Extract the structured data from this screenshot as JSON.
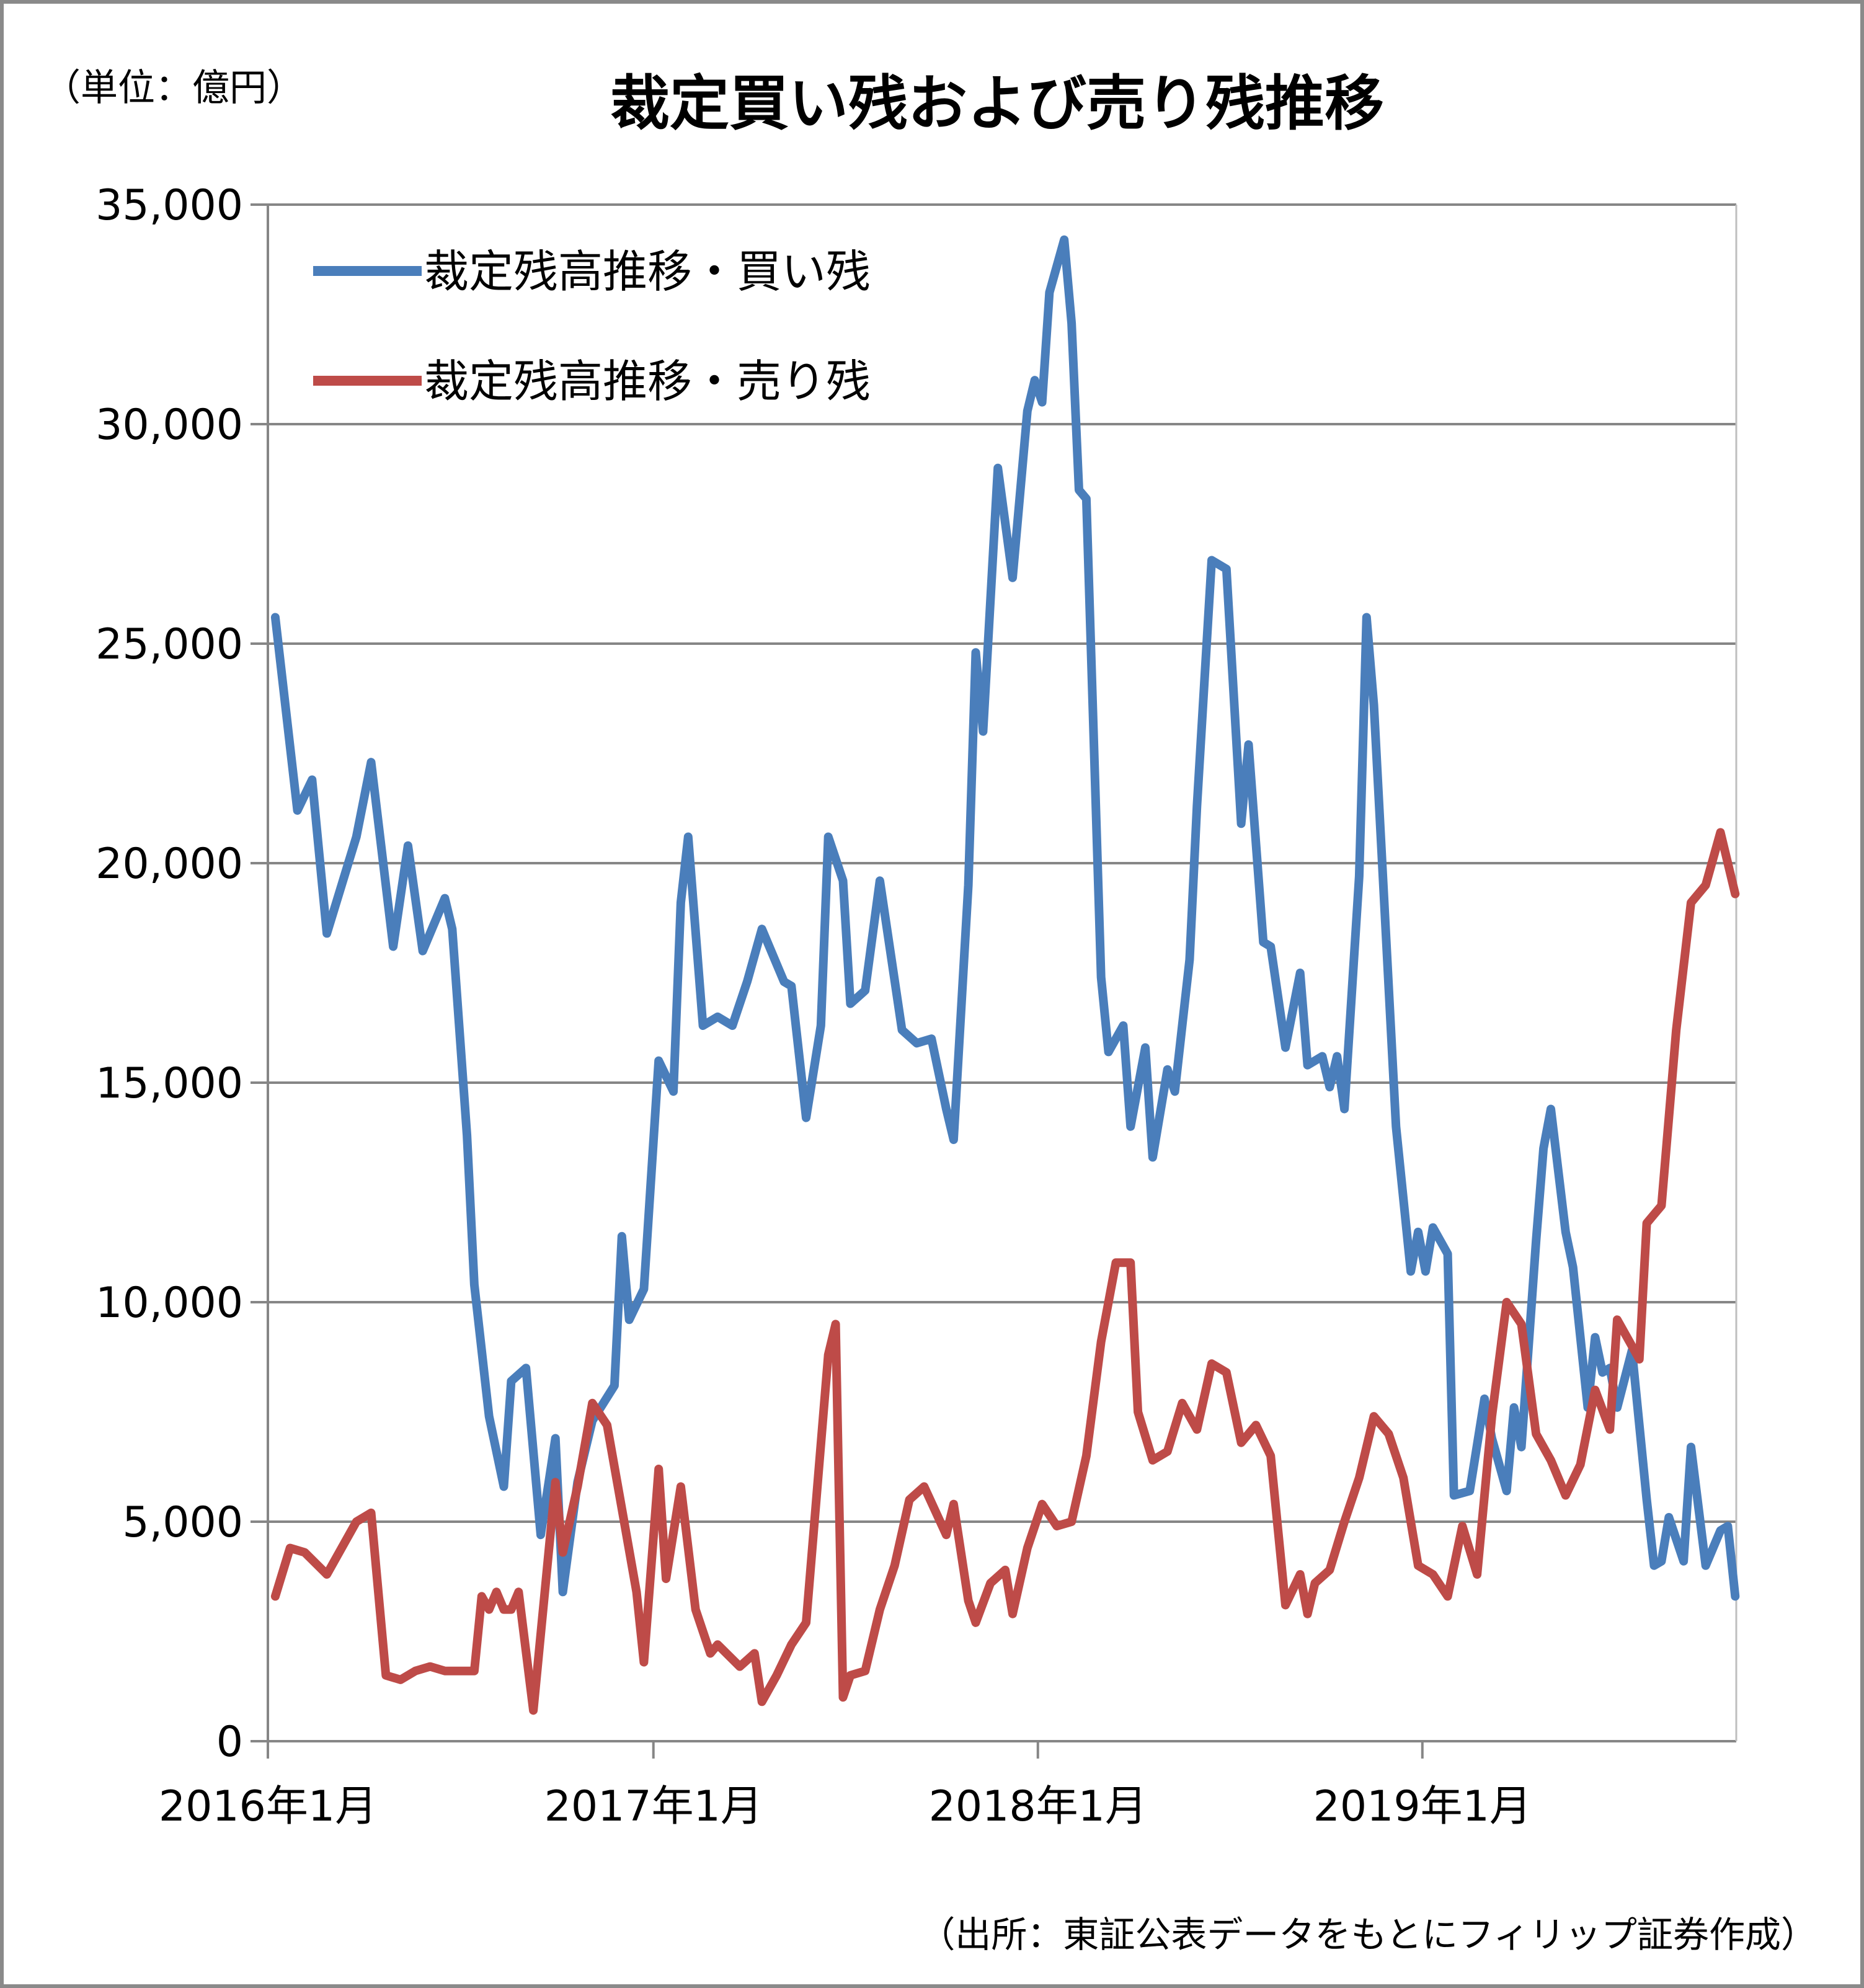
{
  "unit_label": "（単位：億円）",
  "source_note": "（出所：東証公表データをもとにフィリップ証券作成）",
  "chart_data": {
    "type": "line",
    "title": "裁定買い残および売り残推移",
    "xlabel": "",
    "ylabel": "",
    "x_start": "2016-01",
    "x_end": "2019-09",
    "xlim": [
      "2016-01",
      "2019-09"
    ],
    "ylim": [
      0,
      35000
    ],
    "y_ticks": [
      0,
      5000,
      10000,
      15000,
      20000,
      25000,
      30000,
      35000
    ],
    "y_tick_labels": [
      "0",
      "5,000",
      "10,000",
      "15,000",
      "20,000",
      "25,000",
      "30,000",
      "35,000"
    ],
    "x_ticks": [
      "2016-01",
      "2017-01",
      "2018-01",
      "2019-01"
    ],
    "x_tick_labels": [
      "2016年1月",
      "2017年1月",
      "2018年1月",
      "2019年1月"
    ],
    "grid": "horizontal",
    "legend_position": "top-left",
    "series": [
      {
        "name": "裁定残高推移・買い残",
        "color": "#4a7ebb",
        "values": [
          25600,
          21200,
          21900,
          18400,
          20600,
          22300,
          18100,
          20400,
          18000,
          19200,
          18500,
          13800,
          10400,
          7400,
          5800,
          8200,
          8500,
          4700,
          6900,
          3400,
          5900,
          7300,
          8100,
          11500,
          9600,
          10300,
          15500,
          14800,
          19100,
          20600,
          16300,
          16500,
          16300,
          17300,
          18500,
          17300,
          17200,
          14200,
          16300,
          20600,
          19600,
          16800,
          17100,
          19600,
          16200,
          15900,
          16000,
          14400,
          13700,
          19500,
          24800,
          23000,
          29000,
          26500,
          30300,
          31000,
          30500,
          33000,
          34200,
          32300,
          28500,
          28300,
          17400,
          15700,
          16300,
          14000,
          15800,
          13300,
          15300,
          14800,
          17800,
          21300,
          26900,
          26700,
          20900,
          22700,
          18200,
          18100,
          15800,
          17500,
          15400,
          15600,
          14900,
          15600,
          14400,
          19700,
          25600,
          23600,
          14000,
          10700,
          11600,
          10700,
          11700,
          11100,
          5600,
          5700,
          7800,
          6900,
          5700,
          7600,
          6700,
          11400,
          13500,
          14400,
          11600,
          10800,
          7600,
          9200,
          8400,
          8500,
          7600,
          8900,
          5500,
          4000,
          4100,
          5100,
          4100,
          6700,
          4000,
          4800,
          4900,
          3300
        ],
        "dates": [
          "2016-01-08",
          "2016-01-29",
          "2016-02-12",
          "2016-02-26",
          "2016-03-25",
          "2016-04-08",
          "2016-04-29",
          "2016-05-13",
          "2016-05-27",
          "2016-06-17",
          "2016-06-24",
          "2016-07-08",
          "2016-07-15",
          "2016-07-29",
          "2016-08-12",
          "2016-08-19",
          "2016-09-02",
          "2016-09-16",
          "2016-09-30",
          "2016-10-07",
          "2016-10-21",
          "2016-11-04",
          "2016-11-25",
          "2016-12-02",
          "2016-12-09",
          "2016-12-23",
          "2017-01-06",
          "2017-01-20",
          "2017-01-27",
          "2017-02-03",
          "2017-02-17",
          "2017-03-03",
          "2017-03-17",
          "2017-03-31",
          "2017-04-14",
          "2017-05-05",
          "2017-05-12",
          "2017-05-26",
          "2017-06-09",
          "2017-06-16",
          "2017-06-30",
          "2017-07-07",
          "2017-07-21",
          "2017-08-04",
          "2017-08-25",
          "2017-09-08",
          "2017-09-22",
          "2017-10-06",
          "2017-10-13",
          "2017-10-27",
          "2017-11-03",
          "2017-11-10",
          "2017-11-24",
          "2017-12-08",
          "2017-12-22",
          "2017-12-29",
          "2018-01-05",
          "2018-01-12",
          "2018-01-26",
          "2018-02-02",
          "2018-02-09",
          "2018-02-16",
          "2018-03-02",
          "2018-03-09",
          "2018-03-23",
          "2018-03-30",
          "2018-04-13",
          "2018-04-20",
          "2018-05-04",
          "2018-05-11",
          "2018-05-25",
          "2018-06-01",
          "2018-06-15",
          "2018-06-29",
          "2018-07-13",
          "2018-07-20",
          "2018-08-03",
          "2018-08-10",
          "2018-08-24",
          "2018-09-07",
          "2018-09-14",
          "2018-09-28",
          "2018-10-05",
          "2018-10-12",
          "2018-10-19",
          "2018-11-02",
          "2018-11-09",
          "2018-11-16",
          "2018-12-07",
          "2018-12-21",
          "2018-12-28",
          "2019-01-04",
          "2019-01-11",
          "2019-01-25",
          "2019-01-31",
          "2019-02-15",
          "2019-03-01",
          "2019-03-08",
          "2019-03-22",
          "2019-03-29",
          "2019-04-05",
          "2019-04-19",
          "2019-04-26",
          "2019-05-03",
          "2019-05-17",
          "2019-05-24",
          "2019-06-07",
          "2019-06-14",
          "2019-06-21",
          "2019-06-28",
          "2019-07-05",
          "2019-07-19",
          "2019-08-02",
          "2019-08-09",
          "2019-08-16",
          "2019-08-23",
          "2019-09-06",
          "2019-09-13",
          "2019-09-27",
          "2019-10-11",
          "2019-10-18",
          "2019-10-25"
        ]
      },
      {
        "name": "裁定残高推移・売り残",
        "color": "#be4b48",
        "values": [
          3300,
          4400,
          4300,
          3800,
          5000,
          5200,
          1500,
          1400,
          1600,
          1700,
          1600,
          1600,
          1600,
          1600,
          1600,
          3300,
          3000,
          3400,
          3000,
          3000,
          3400,
          700,
          5900,
          4300,
          5800,
          7700,
          7200,
          5300,
          3400,
          1800,
          6200,
          3700,
          5800,
          3000,
          2000,
          2200,
          1700,
          2000,
          900,
          1500,
          2200,
          2700,
          8800,
          9500,
          1000,
          1500,
          1600,
          3000,
          4000,
          5500,
          5800,
          4700,
          5400,
          3200,
          2700,
          3600,
          3900,
          2900,
          4400,
          5400,
          4900,
          5000,
          6500,
          9100,
          10900,
          10900,
          7500,
          6400,
          6600,
          7700,
          7100,
          8600,
          8400,
          6800,
          7200,
          6500,
          3100,
          3800,
          2900,
          3600,
          3900,
          5000,
          6000,
          7400,
          7000,
          6000,
          4000,
          3800,
          3300,
          4900,
          3800,
          7400,
          10000,
          9500,
          7000,
          6400,
          5600,
          6300,
          8000,
          7100,
          9600,
          8700,
          11800,
          12200,
          16200,
          19100,
          19500,
          20700,
          19300
        ],
        "dates": [
          "2016-01-08",
          "2016-01-22",
          "2016-02-05",
          "2016-02-26",
          "2016-03-25",
          "2016-04-08",
          "2016-04-22",
          "2016-05-06",
          "2016-05-20",
          "2016-06-03",
          "2016-06-17",
          "2016-06-24",
          "2016-07-01",
          "2016-07-08",
          "2016-07-15",
          "2016-07-22",
          "2016-07-29",
          "2016-08-05",
          "2016-08-12",
          "2016-08-19",
          "2016-08-26",
          "2016-09-09",
          "2016-09-30",
          "2016-10-07",
          "2016-10-21",
          "2016-11-04",
          "2016-11-18",
          "2016-12-02",
          "2016-12-16",
          "2016-12-23",
          "2017-01-06",
          "2017-01-13",
          "2017-01-27",
          "2017-02-10",
          "2017-02-24",
          "2017-03-03",
          "2017-03-24",
          "2017-04-07",
          "2017-04-14",
          "2017-04-28",
          "2017-05-12",
          "2017-05-26",
          "2017-06-16",
          "2017-06-23",
          "2017-06-30",
          "2017-07-07",
          "2017-07-21",
          "2017-08-04",
          "2017-08-18",
          "2017-09-01",
          "2017-09-15",
          "2017-10-06",
          "2017-10-13",
          "2017-10-27",
          "2017-11-03",
          "2017-11-17",
          "2017-12-01",
          "2017-12-08",
          "2017-12-22",
          "2018-01-05",
          "2018-01-19",
          "2018-02-02",
          "2018-02-16",
          "2018-03-02",
          "2018-03-16",
          "2018-03-30",
          "2018-04-06",
          "2018-04-20",
          "2018-05-04",
          "2018-05-18",
          "2018-06-01",
          "2018-06-15",
          "2018-06-29",
          "2018-07-13",
          "2018-07-27",
          "2018-08-10",
          "2018-08-24",
          "2018-09-07",
          "2018-09-14",
          "2018-09-21",
          "2018-10-05",
          "2018-10-19",
          "2018-11-02",
          "2018-11-16",
          "2018-11-30",
          "2018-12-14",
          "2018-12-28",
          "2019-01-11",
          "2019-01-25",
          "2019-02-08",
          "2019-02-22",
          "2019-03-08",
          "2019-03-22",
          "2019-04-05",
          "2019-04-19",
          "2019-05-03",
          "2019-05-17",
          "2019-05-31",
          "2019-06-14",
          "2019-06-28",
          "2019-07-05",
          "2019-07-26",
          "2019-08-02",
          "2019-08-16",
          "2019-08-30",
          "2019-09-13",
          "2019-09-27",
          "2019-10-11",
          "2019-10-25"
        ]
      }
    ]
  }
}
